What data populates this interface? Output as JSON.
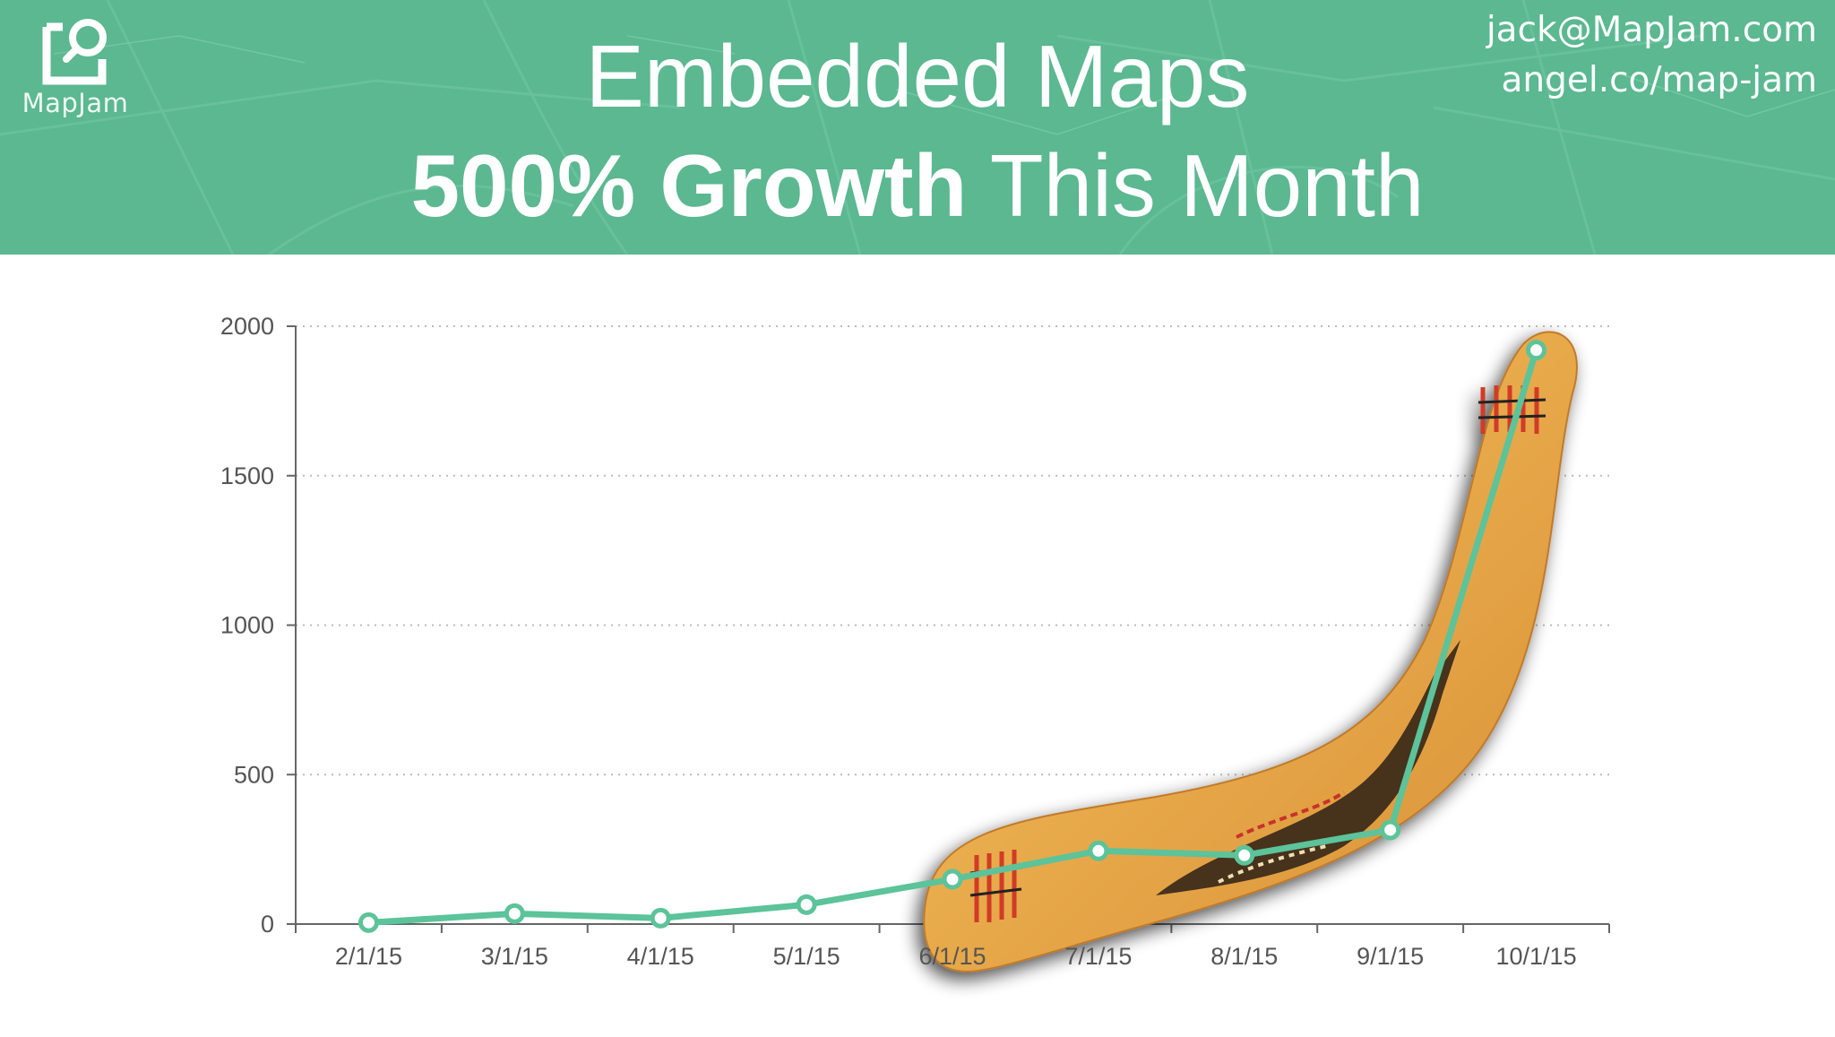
{
  "header": {
    "logo_text": "MapJam",
    "title_line1": "Embedded Maps",
    "title_line2_bold": "500% Growth",
    "title_line2_rest": " This Month",
    "contact_email": "jack@MapJam.com",
    "contact_url": "angel.co/map-jam",
    "background_color": "#5bb891"
  },
  "chart_data": {
    "type": "line",
    "title": "",
    "xlabel": "",
    "ylabel": "",
    "categories": [
      "2/1/15",
      "3/1/15",
      "4/1/15",
      "5/1/15",
      "6/1/15",
      "7/1/15",
      "8/1/15",
      "9/1/15",
      "10/1/15"
    ],
    "series": [
      {
        "values": [
          5,
          35,
          20,
          65,
          150,
          245,
          230,
          315,
          1920
        ]
      }
    ],
    "ylim": [
      0,
      2000
    ],
    "yticks": [
      0,
      500,
      1000,
      1500,
      2000
    ],
    "grid": true,
    "line_color": "#5cc39a",
    "background_image": "boomerang"
  }
}
